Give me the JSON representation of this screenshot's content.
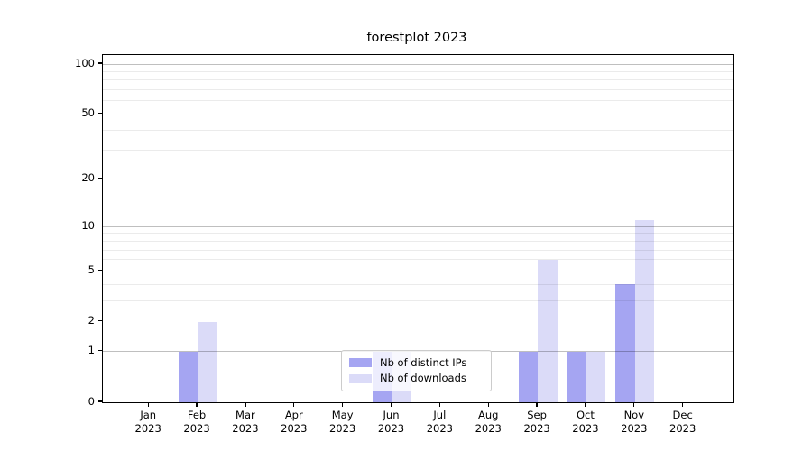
{
  "chart_data": {
    "type": "bar",
    "title": "forestplot 2023",
    "categories": [
      "Jan 2023",
      "Feb 2023",
      "Mar 2023",
      "Apr 2023",
      "May 2023",
      "Jun 2023",
      "Jul 2023",
      "Aug 2023",
      "Sep 2023",
      "Oct 2023",
      "Nov 2023",
      "Dec 2023"
    ],
    "series": [
      {
        "name": "Nb of distinct IPs",
        "color": "#a5a5f2",
        "values": [
          0,
          1,
          0,
          0,
          0,
          1,
          0,
          0,
          1,
          1,
          4,
          0
        ]
      },
      {
        "name": "Nb of downloads",
        "color": "#dbdbf8",
        "values": [
          0,
          2,
          0,
          0,
          0,
          1,
          0,
          0,
          6,
          1,
          11,
          0
        ]
      }
    ],
    "xlabel": "",
    "ylabel": "",
    "yscale": "log1p",
    "ylim": [
      0,
      113
    ],
    "yticks": [
      0,
      1,
      2,
      5,
      10,
      20,
      50,
      100
    ],
    "minor_yticks": [
      3,
      4,
      6,
      7,
      8,
      9,
      30,
      40,
      60,
      70,
      80,
      90
    ],
    "major_grid_values": [
      1,
      10,
      100
    ],
    "grid": true,
    "legend_position": "inside-bottom-center"
  },
  "legend": {
    "items": [
      {
        "label": "Nb of distinct IPs",
        "color": "#a5a5f2"
      },
      {
        "label": "Nb of downloads",
        "color": "#dbdbf8"
      }
    ]
  },
  "colors": {
    "background": "#ffffff",
    "axis": "#000000",
    "grid_major": "rgba(0,0,0,0.25)",
    "grid_minor": "rgba(0,0,0,0.08)",
    "bar_distinct_ips": "#a5a5f2",
    "bar_downloads": "#dbdbf8"
  }
}
